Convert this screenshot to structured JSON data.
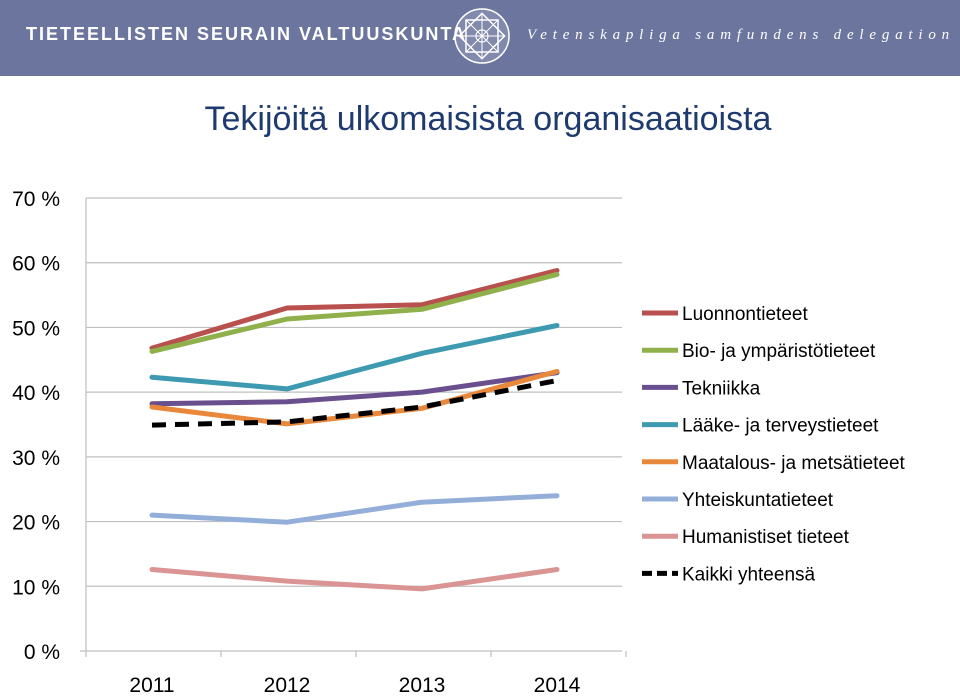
{
  "header": {
    "org_fi": "TIETEELLISTEN SEURAIN VALTUUSKUNTA",
    "org_sv": "Vetenskapliga samfundens delegation"
  },
  "chart_data": {
    "type": "line",
    "title": "Tekijöitä ulkomaisista organisaatioista",
    "xlabel": "",
    "ylabel": "",
    "categories": [
      "2011",
      "2012",
      "2013",
      "2014"
    ],
    "ylim": [
      0,
      70
    ],
    "yticks": [
      "0 %",
      "10 %",
      "20 %",
      "30 %",
      "40 %",
      "50 %",
      "60 %",
      "70 %"
    ],
    "grid": true,
    "legend_position": "right",
    "series": [
      {
        "name": "Luonnontieteet",
        "color": "#b8504e",
        "dashed": false,
        "values": [
          46.8,
          53.0,
          53.5,
          58.8
        ]
      },
      {
        "name": "Bio- ja ympäristötieteet",
        "color": "#8fb04b",
        "dashed": false,
        "values": [
          46.3,
          51.3,
          52.8,
          58.2
        ]
      },
      {
        "name": "Tekniikka",
        "color": "#6a4f8e",
        "dashed": false,
        "values": [
          38.2,
          38.5,
          40.0,
          43.0
        ]
      },
      {
        "name": "Lääke- ja terveystieteet",
        "color": "#3e9ab0",
        "dashed": false,
        "values": [
          42.3,
          40.5,
          46.0,
          50.3
        ]
      },
      {
        "name": "Maatalous- ja metsätieteet",
        "color": "#e8883a",
        "dashed": false,
        "values": [
          37.7,
          35.1,
          37.5,
          43.2
        ]
      },
      {
        "name": "Yhteiskuntatieteet",
        "color": "#93aed8",
        "dashed": false,
        "values": [
          21.0,
          19.9,
          23.0,
          24.0
        ]
      },
      {
        "name": "Humanistiset tieteet",
        "color": "#d99493",
        "dashed": false,
        "values": [
          12.6,
          10.8,
          9.6,
          12.6
        ]
      },
      {
        "name": "Kaikki yhteensä",
        "color": "#000000",
        "dashed": true,
        "values": [
          34.9,
          35.4,
          37.7,
          41.8
        ]
      }
    ]
  }
}
